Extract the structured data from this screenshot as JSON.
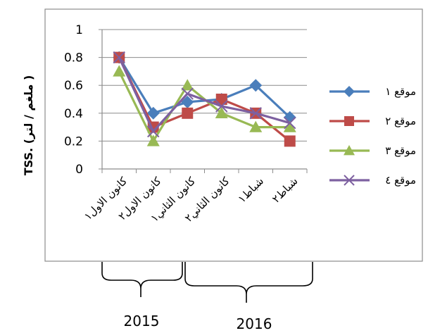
{
  "chart_data": {
    "type": "line",
    "title": "",
    "xlabel": "",
    "ylabel": "TSS. (ملغم / لتر )",
    "ylim": [
      0,
      1
    ],
    "yticks": [
      "0",
      "0.2",
      "0.4",
      "0.6",
      "0.8",
      "1"
    ],
    "grid": true,
    "legend_position": "right",
    "categories": [
      "كانون الاول١",
      "كانون الاول٢",
      "كانون الثاني١",
      "كانون الثاني٢",
      "شباط١",
      "شباط٢"
    ],
    "series": [
      {
        "name": "موقع ١",
        "values": [
          0.8,
          0.4,
          0.48,
          0.5,
          0.6,
          0.37
        ],
        "color": "#4a7ebb",
        "marker": "diamond"
      },
      {
        "name": "موقع ٢",
        "values": [
          0.8,
          0.3,
          0.4,
          0.5,
          0.4,
          0.2
        ],
        "color": "#be4b48",
        "marker": "square"
      },
      {
        "name": "موقع ٣",
        "values": [
          0.7,
          0.2,
          0.6,
          0.4,
          0.3,
          0.3
        ],
        "color": "#98b954",
        "marker": "triangle"
      },
      {
        "name": "موقع ٤",
        "values": [
          0.8,
          0.27,
          0.54,
          0.45,
          0.4,
          0.33
        ],
        "color": "#7d60a0",
        "marker": "x"
      }
    ]
  },
  "groups": {
    "year_2015": "2015",
    "year_2016": "2016"
  }
}
